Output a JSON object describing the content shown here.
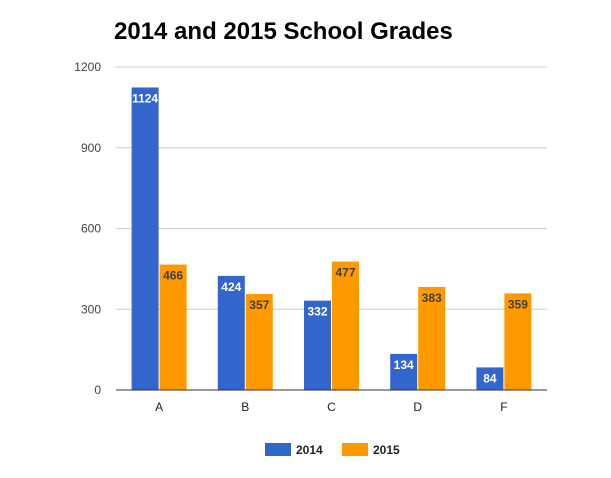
{
  "chart_data": {
    "type": "bar",
    "title": "2014 and 2015 School Grades",
    "xlabel": "",
    "ylabel": "",
    "categories": [
      "A",
      "B",
      "C",
      "D",
      "F"
    ],
    "series": [
      {
        "name": "2014",
        "color": "#3366cc",
        "values": [
          1124,
          424,
          332,
          134,
          84
        ]
      },
      {
        "name": "2015",
        "color": "#ff9900",
        "values": [
          466,
          357,
          477,
          383,
          359
        ]
      }
    ],
    "ylim": [
      0,
      1200
    ],
    "yticks": [
      0,
      300,
      600,
      900,
      1200
    ],
    "grid": true,
    "legend": "bottom",
    "data_labels": true
  }
}
